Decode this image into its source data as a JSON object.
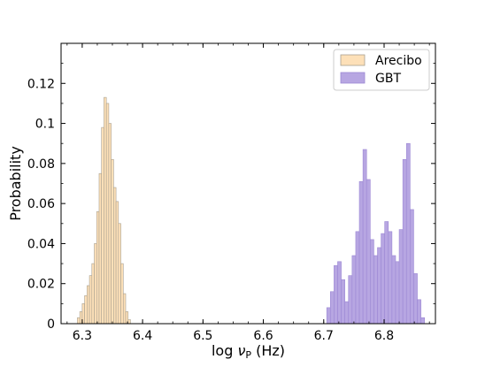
{
  "chart_data": {
    "type": "bar",
    "xlabel": "log νP (Hz)",
    "xlabel_parts": {
      "prefix": "log ",
      "symbol": "ν",
      "subscript": "P",
      "suffix": " (Hz)"
    },
    "ylabel": "Probability",
    "xlim": [
      6.265,
      6.885
    ],
    "ylim": [
      0,
      0.14
    ],
    "xticks": [
      6.3,
      6.4,
      6.5,
      6.6,
      6.7,
      6.8
    ],
    "xtick_labels": [
      "6.3",
      "6.4",
      "6.5",
      "6.6",
      "6.7",
      "6.8"
    ],
    "yticks": [
      0,
      0.02,
      0.04,
      0.06,
      0.08,
      0.1,
      0.12
    ],
    "ytick_labels": [
      "0",
      "0.02",
      "0.04",
      "0.06",
      "0.08",
      "0.1",
      "0.12"
    ],
    "legend_position": "top-right",
    "series": [
      {
        "name": "Arecibo",
        "color": "#fde0b8",
        "edge_color": "#a8a090",
        "bins": [
          [
            6.292,
            6.296,
            0.003
          ],
          [
            6.296,
            6.3,
            0.006
          ],
          [
            6.3,
            6.304,
            0.01
          ],
          [
            6.304,
            6.308,
            0.014
          ],
          [
            6.308,
            6.312,
            0.019
          ],
          [
            6.312,
            6.316,
            0.024
          ],
          [
            6.316,
            6.32,
            0.03
          ],
          [
            6.32,
            6.324,
            0.04
          ],
          [
            6.324,
            6.328,
            0.056
          ],
          [
            6.328,
            6.332,
            0.075
          ],
          [
            6.332,
            6.336,
            0.098
          ],
          [
            6.336,
            6.34,
            0.113
          ],
          [
            6.34,
            6.344,
            0.11
          ],
          [
            6.344,
            6.348,
            0.1
          ],
          [
            6.348,
            6.352,
            0.082
          ],
          [
            6.352,
            6.356,
            0.068
          ],
          [
            6.356,
            6.36,
            0.061
          ],
          [
            6.36,
            6.364,
            0.05
          ],
          [
            6.364,
            6.368,
            0.03
          ],
          [
            6.368,
            6.372,
            0.015
          ],
          [
            6.372,
            6.376,
            0.006
          ],
          [
            6.376,
            6.38,
            0.002
          ]
        ]
      },
      {
        "name": "GBT",
        "color": "#b7a6e2",
        "edge_color": "#9c88d4",
        "bins": [
          [
            6.705,
            6.711,
            0.008
          ],
          [
            6.711,
            6.717,
            0.016
          ],
          [
            6.717,
            6.723,
            0.029
          ],
          [
            6.723,
            6.729,
            0.031
          ],
          [
            6.729,
            6.735,
            0.022
          ],
          [
            6.735,
            6.741,
            0.011
          ],
          [
            6.741,
            6.747,
            0.024
          ],
          [
            6.747,
            6.753,
            0.034
          ],
          [
            6.753,
            6.759,
            0.046
          ],
          [
            6.759,
            6.765,
            0.071
          ],
          [
            6.765,
            6.771,
            0.087
          ],
          [
            6.771,
            6.777,
            0.072
          ],
          [
            6.777,
            6.783,
            0.042
          ],
          [
            6.783,
            6.789,
            0.034
          ],
          [
            6.789,
            6.795,
            0.038
          ],
          [
            6.795,
            6.801,
            0.045
          ],
          [
            6.801,
            6.807,
            0.051
          ],
          [
            6.807,
            6.813,
            0.046
          ],
          [
            6.813,
            6.819,
            0.034
          ],
          [
            6.819,
            6.825,
            0.031
          ],
          [
            6.825,
            6.831,
            0.047
          ],
          [
            6.831,
            6.837,
            0.082
          ],
          [
            6.837,
            6.843,
            0.09
          ],
          [
            6.843,
            6.849,
            0.057
          ],
          [
            6.849,
            6.855,
            0.025
          ],
          [
            6.855,
            6.861,
            0.012
          ],
          [
            6.861,
            6.867,
            0.003
          ]
        ]
      }
    ]
  }
}
